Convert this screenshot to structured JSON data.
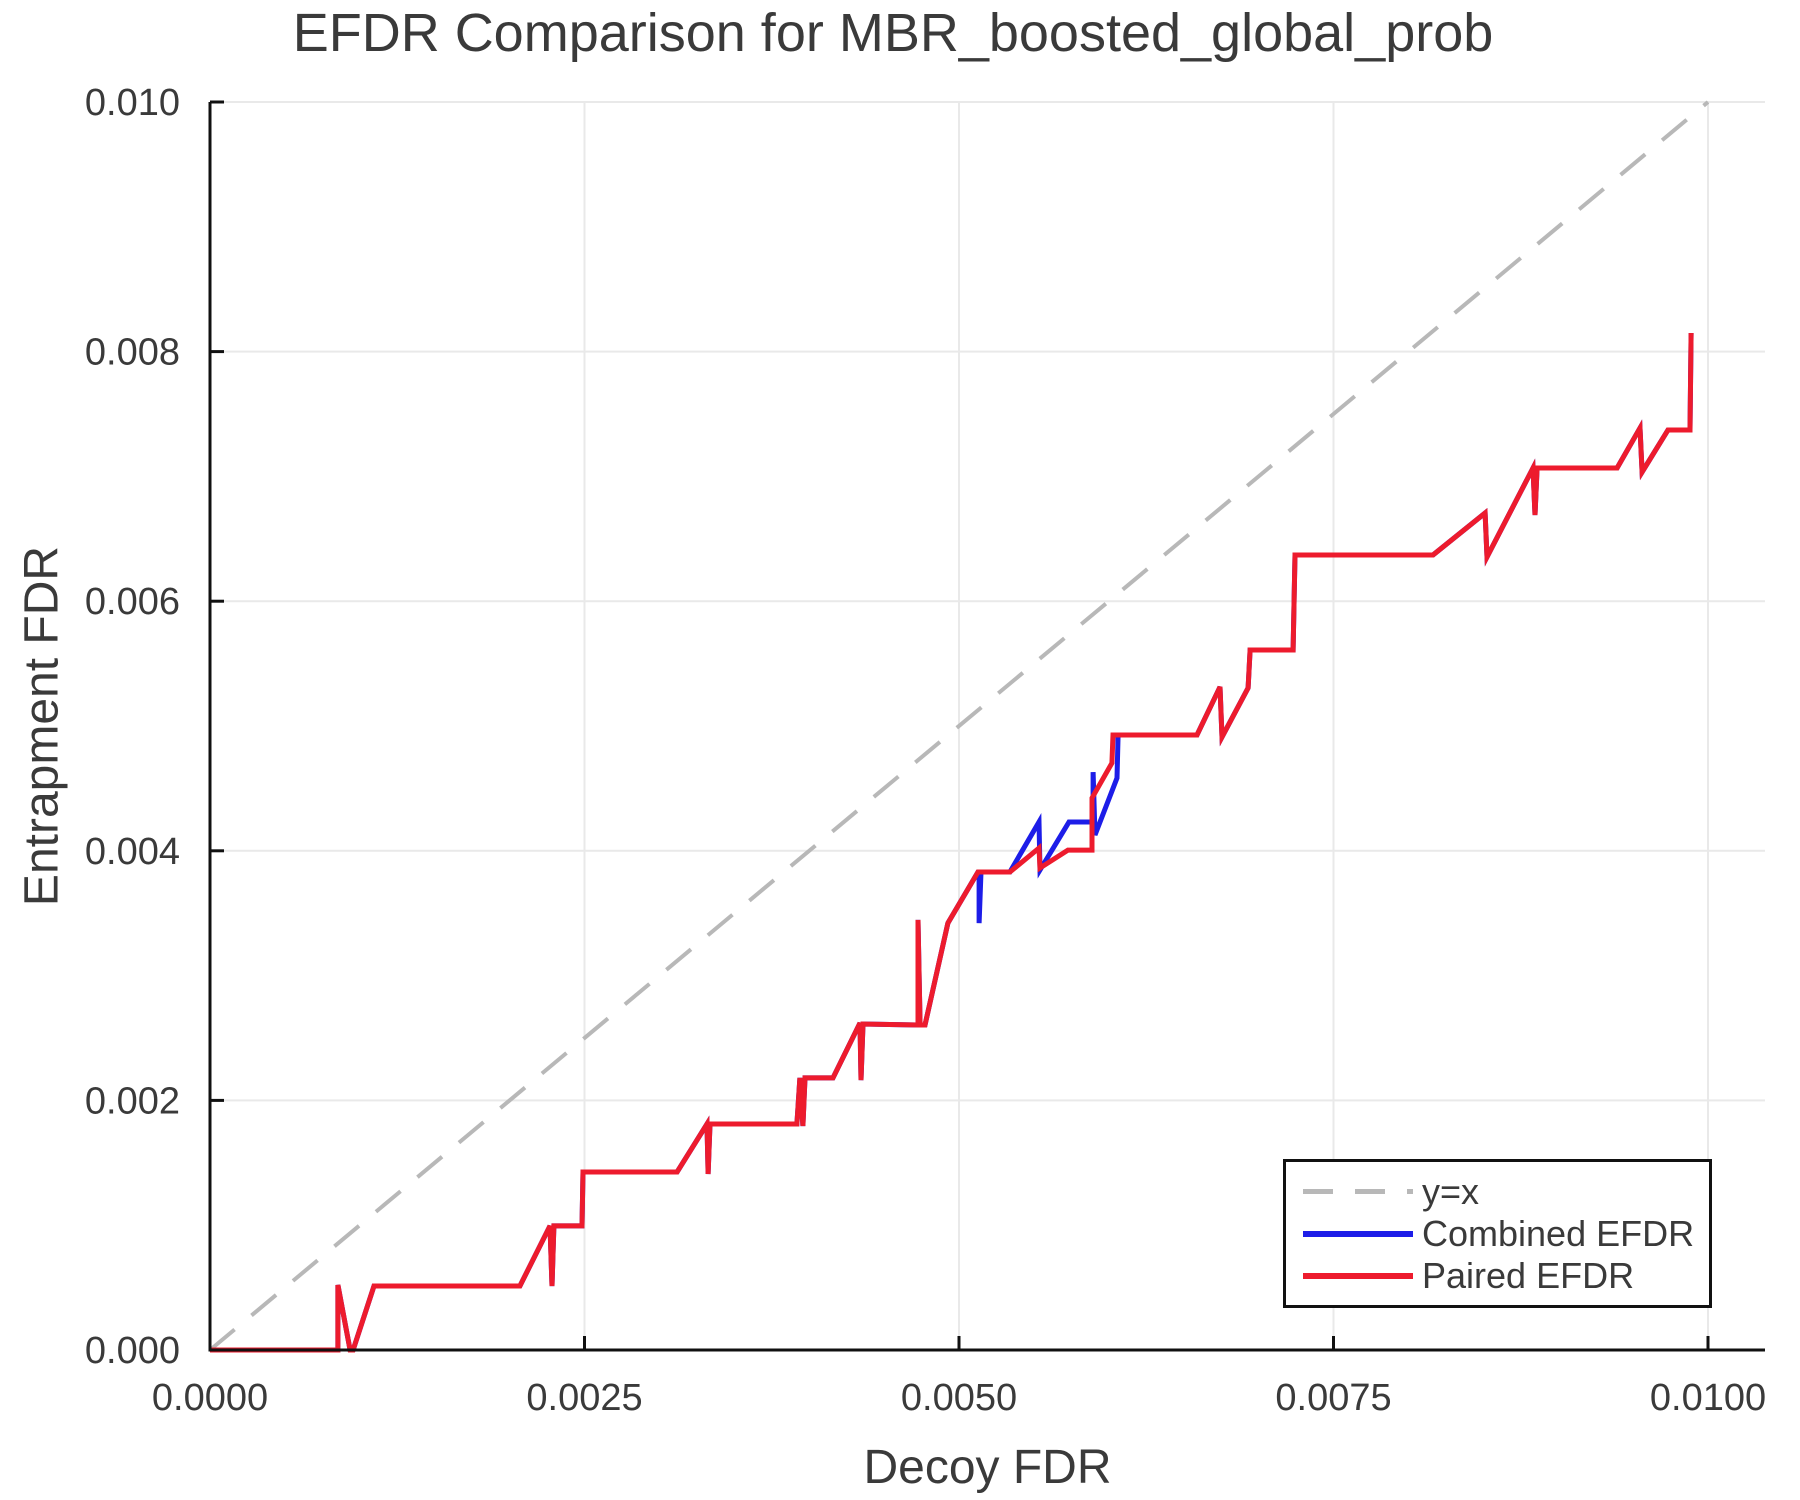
{
  "legend": {
    "items": [
      {
        "label": "y=x",
        "style": "dashed",
        "color_key": "identity"
      },
      {
        "label": "Combined EFDR",
        "style": "solid",
        "color_key": "combined"
      },
      {
        "label": "Paired EFDR",
        "style": "solid",
        "color_key": "paired"
      }
    ],
    "position": "lower right"
  },
  "chart_data": {
    "type": "line",
    "title": "EFDR Comparison for MBR_boosted_global_prob",
    "xlabel": "Decoy FDR",
    "ylabel": "Entrapment FDR",
    "xlim": [
      0,
      0.010381
    ],
    "ylim": [
      0,
      0.01
    ],
    "grid": true,
    "legend_position": "lower right",
    "xticks": {
      "values": [
        0,
        0.0025,
        0.005,
        0.0075,
        0.01
      ],
      "labels": [
        "0.0000",
        "0.0025",
        "0.0050",
        "0.0075",
        "0.0100"
      ]
    },
    "yticks": {
      "values": [
        0,
        0.002,
        0.004,
        0.006,
        0.008,
        0.01
      ],
      "labels": [
        "0.000",
        "0.002",
        "0.004",
        "0.006",
        "0.008",
        "0.010"
      ]
    },
    "colors": {
      "identity": "#b8b8b8",
      "combined": "#1d1de8",
      "paired": "#ed1b2d",
      "axis": "#111111",
      "grid": "#e9e9e9",
      "text": "#3a3a3a"
    },
    "series": [
      {
        "name": "y=x",
        "style": "dashed",
        "color_key": "identity",
        "width": 4,
        "points": [
          [
            0,
            0
          ],
          [
            0.01,
            0.01
          ]
        ]
      },
      {
        "name": "Combined EFDR",
        "style": "solid",
        "color_key": "combined",
        "width": 5,
        "points": [
          [
            0,
            0
          ],
          [
            0.000854,
            0
          ],
          [
            0.000854,
            0.000521
          ],
          [
            0.000935,
            0
          ],
          [
            0.000955,
            0
          ],
          [
            0.001095,
            0.000513
          ],
          [
            0.002069,
            0.000513
          ],
          [
            0.00227,
            0.000994
          ],
          [
            0.002283,
            0.000513
          ],
          [
            0.002296,
            0.000994
          ],
          [
            0.002483,
            0.000994
          ],
          [
            0.00249,
            0.001426
          ],
          [
            0.003118,
            0.001426
          ],
          [
            0.003318,
            0.001811
          ],
          [
            0.003325,
            0.00141
          ],
          [
            0.003338,
            0.001811
          ],
          [
            0.003918,
            0.001811
          ],
          [
            0.003938,
            0.00218
          ],
          [
            0.003958,
            0.001795
          ],
          [
            0.003972,
            0.00218
          ],
          [
            0.004159,
            0.00218
          ],
          [
            0.004339,
            0.00262
          ],
          [
            0.004346,
            0.002163
          ],
          [
            0.004359,
            0.002612
          ],
          [
            0.004726,
            0.002604
          ],
          [
            0.004726,
            0.003446
          ],
          [
            0.00474,
            0.002604
          ],
          [
            0.004773,
            0.002604
          ],
          [
            0.004926,
            0.003421
          ],
          [
            0.005127,
            0.00383
          ],
          [
            0.005134,
            0.00383
          ],
          [
            0.005134,
            0.003421
          ],
          [
            0.005147,
            0.00383
          ],
          [
            0.00534,
            0.00383
          ],
          [
            0.005534,
            0.004231
          ],
          [
            0.005541,
            0.003846
          ],
          [
            0.005734,
            0.004231
          ],
          [
            0.005895,
            0.004231
          ],
          [
            0.005895,
            0.004631
          ],
          [
            0.005908,
            0.004127
          ],
          [
            0.006055,
            0.004583
          ],
          [
            0.006062,
            0.004928
          ],
          [
            0.006589,
            0.004928
          ],
          [
            0.006742,
            0.005313
          ],
          [
            0.006756,
            0.004912
          ],
          [
            0.00693,
            0.005305
          ],
          [
            0.006943,
            0.005609
          ],
          [
            0.00723,
            0.005609
          ],
          [
            0.007243,
            0.00637
          ],
          [
            0.008164,
            0.00637
          ],
          [
            0.008512,
            0.006707
          ],
          [
            0.008525,
            0.006354
          ],
          [
            0.008832,
            0.007067
          ],
          [
            0.008845,
            0.006691
          ],
          [
            0.008859,
            0.007067
          ],
          [
            0.009393,
            0.007067
          ],
          [
            0.009546,
            0.007388
          ],
          [
            0.00956,
            0.007035
          ],
          [
            0.009733,
            0.007372
          ],
          [
            0.00988,
            0.007372
          ],
          [
            0.009887,
            0.008149
          ]
        ]
      },
      {
        "name": "Paired EFDR",
        "style": "solid",
        "color_key": "paired",
        "width": 5,
        "points": [
          [
            0,
            0
          ],
          [
            0.000854,
            0
          ],
          [
            0.000854,
            0.000521
          ],
          [
            0.000935,
            0
          ],
          [
            0.000955,
            0
          ],
          [
            0.001095,
            0.000513
          ],
          [
            0.002069,
            0.000513
          ],
          [
            0.00227,
            0.000994
          ],
          [
            0.002283,
            0.000513
          ],
          [
            0.002296,
            0.000994
          ],
          [
            0.002483,
            0.000994
          ],
          [
            0.00249,
            0.001426
          ],
          [
            0.003118,
            0.001426
          ],
          [
            0.003318,
            0.001811
          ],
          [
            0.003325,
            0.00141
          ],
          [
            0.003338,
            0.001811
          ],
          [
            0.003918,
            0.001811
          ],
          [
            0.003938,
            0.00218
          ],
          [
            0.003958,
            0.001795
          ],
          [
            0.003972,
            0.00218
          ],
          [
            0.004159,
            0.00218
          ],
          [
            0.004339,
            0.00262
          ],
          [
            0.004346,
            0.002163
          ],
          [
            0.004359,
            0.002612
          ],
          [
            0.004726,
            0.002604
          ],
          [
            0.004726,
            0.003446
          ],
          [
            0.00474,
            0.002604
          ],
          [
            0.004773,
            0.002604
          ],
          [
            0.004926,
            0.003421
          ],
          [
            0.005127,
            0.00383
          ],
          [
            0.00534,
            0.00383
          ],
          [
            0.005534,
            0.004022
          ],
          [
            0.005541,
            0.003862
          ],
          [
            0.005727,
            0.004006
          ],
          [
            0.005888,
            0.004006
          ],
          [
            0.005888,
            0.004423
          ],
          [
            0.006021,
            0.004703
          ],
          [
            0.006028,
            0.004928
          ],
          [
            0.006589,
            0.004928
          ],
          [
            0.006742,
            0.005313
          ],
          [
            0.006756,
            0.004912
          ],
          [
            0.00693,
            0.005305
          ],
          [
            0.006943,
            0.005609
          ],
          [
            0.00723,
            0.005609
          ],
          [
            0.007243,
            0.00637
          ],
          [
            0.008164,
            0.00637
          ],
          [
            0.008512,
            0.006707
          ],
          [
            0.008525,
            0.006354
          ],
          [
            0.008832,
            0.007067
          ],
          [
            0.008845,
            0.006691
          ],
          [
            0.008859,
            0.007067
          ],
          [
            0.009393,
            0.007067
          ],
          [
            0.009546,
            0.007388
          ],
          [
            0.00956,
            0.007035
          ],
          [
            0.009733,
            0.007372
          ],
          [
            0.00988,
            0.007372
          ],
          [
            0.009887,
            0.008149
          ]
        ]
      }
    ]
  }
}
